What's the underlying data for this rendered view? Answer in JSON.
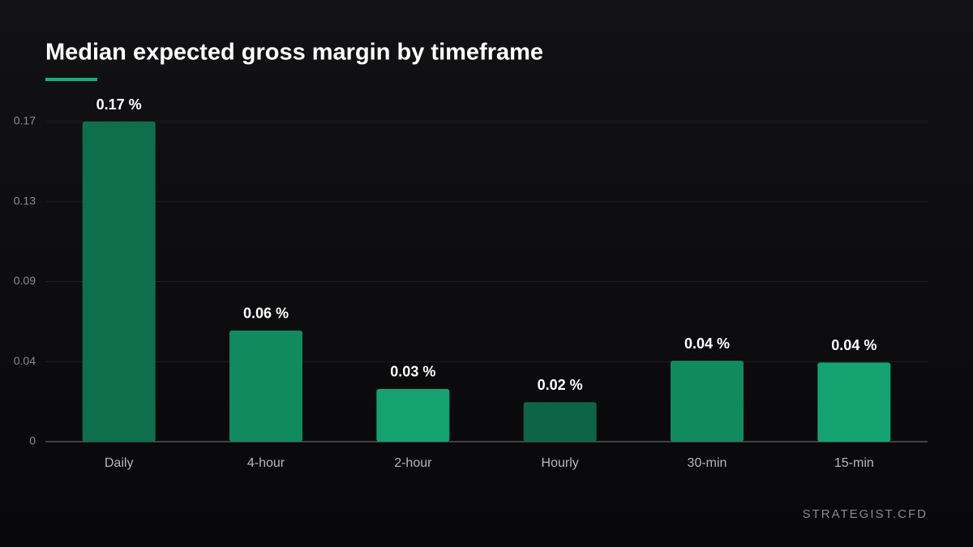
{
  "chart_data": {
    "type": "bar",
    "title": "Median expected gross margin by timeframe",
    "categories": [
      "Daily",
      "4-hour",
      "2-hour",
      "Hourly",
      "30-min",
      "15-min"
    ],
    "values": [
      0.17,
      0.059,
      0.028,
      0.021,
      0.043,
      0.042
    ],
    "value_labels": [
      "0.17 %",
      "0.06 %",
      "0.03 %",
      "0.02 %",
      "0.04 %",
      "0.04 %"
    ],
    "colors": [
      "#0f6e4c",
      "#118a5f",
      "#14a271",
      "#0e6446",
      "#118a5f",
      "#14a271"
    ],
    "ylim": [
      0,
      0.17
    ],
    "yticks": [
      0,
      {
        "value": 0.0425,
        "label": "0.04"
      },
      {
        "value": 0.085,
        "label": "0.09"
      },
      {
        "value": 0.1275,
        "label": "0.13"
      },
      0.17
    ],
    "grid": true,
    "footer": "STRATEGIST.CFD"
  }
}
